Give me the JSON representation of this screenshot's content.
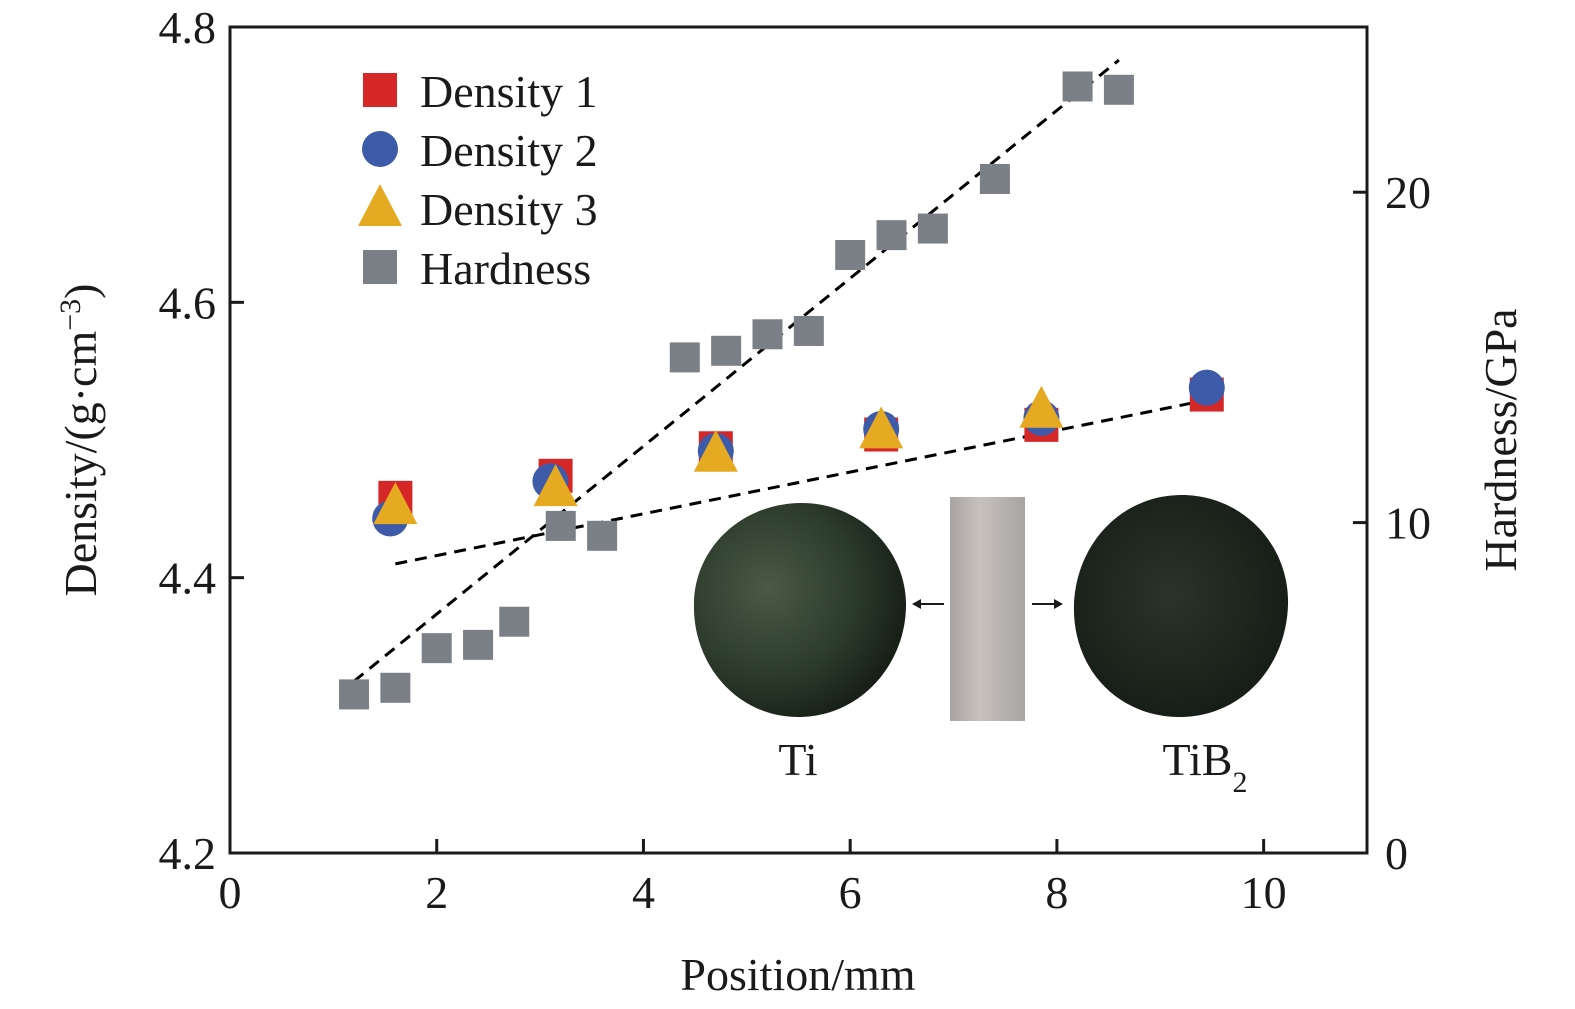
{
  "chart_data": {
    "type": "scatter",
    "title": "",
    "xlabel": "Position/mm",
    "ylabel_left": "Density/(g·cm⁻³)",
    "ylabel_left_base": "Density/(g·cm",
    "ylabel_left_sup": "−3",
    "ylabel_left_close": ")",
    "ylabel_right": "Hardness/GPa",
    "xlim": [
      0,
      11
    ],
    "ylim_left": [
      4.2,
      4.8
    ],
    "ylim_right": [
      0,
      25
    ],
    "xticks": [
      0,
      2,
      4,
      6,
      8,
      10
    ],
    "yticks_left": [
      "4.2",
      "4.4",
      "4.6",
      "4.8"
    ],
    "yticks_right": [
      "0",
      "10",
      "20"
    ],
    "legend_position": "top-left",
    "series": [
      {
        "name": "Density 1",
        "axis": "left",
        "marker": "square",
        "color": "#d62728",
        "points": [
          [
            1.6,
            4.458
          ],
          [
            3.15,
            4.474
          ],
          [
            4.7,
            4.494
          ],
          [
            6.3,
            4.504
          ],
          [
            7.85,
            4.511
          ],
          [
            9.45,
            4.533
          ]
        ]
      },
      {
        "name": "Density 2",
        "axis": "left",
        "marker": "circle",
        "color": "#3d5ba8",
        "points": [
          [
            1.55,
            4.443
          ],
          [
            3.1,
            4.47
          ],
          [
            4.7,
            4.492
          ],
          [
            6.3,
            4.508
          ],
          [
            7.85,
            4.516
          ],
          [
            9.45,
            4.538
          ]
        ]
      },
      {
        "name": "Density 3",
        "axis": "left",
        "marker": "triangle",
        "color": "#e5aa22",
        "points": [
          [
            1.6,
            4.452
          ],
          [
            3.15,
            4.465
          ],
          [
            4.7,
            4.49
          ],
          [
            6.3,
            4.507
          ],
          [
            7.85,
            4.522
          ]
        ]
      },
      {
        "name": "Hardness",
        "axis": "right",
        "marker": "square",
        "color": "#7b7f86",
        "points": [
          [
            1.2,
            4.8
          ],
          [
            1.6,
            5.0
          ],
          [
            2.0,
            6.2
          ],
          [
            2.4,
            6.3
          ],
          [
            2.75,
            7.0
          ],
          [
            3.2,
            9.9
          ],
          [
            3.6,
            9.6
          ],
          [
            4.4,
            15.0
          ],
          [
            4.8,
            15.2
          ],
          [
            5.2,
            15.7
          ],
          [
            5.6,
            15.8
          ],
          [
            6.0,
            18.1
          ],
          [
            6.4,
            18.7
          ],
          [
            6.8,
            18.9
          ],
          [
            7.4,
            20.4
          ],
          [
            8.2,
            23.2
          ],
          [
            8.6,
            23.1
          ]
        ]
      }
    ],
    "trendlines": [
      {
        "axis": "left",
        "from": [
          1.6,
          4.41
        ],
        "to": [
          9.45,
          4.529
        ],
        "style": "dashed",
        "color": "#000000"
      },
      {
        "axis": "right",
        "from": [
          1.2,
          5.2
        ],
        "to": [
          8.6,
          24.0
        ],
        "style": "dashed",
        "color": "#000000"
      }
    ]
  },
  "inset": {
    "left_label": "Ti",
    "right_label_base": "TiB",
    "right_label_sub": "2",
    "left_disc_color": "#2b3a2a",
    "right_disc_color": "#1c241d",
    "bar_color": "#b9b3b0"
  }
}
